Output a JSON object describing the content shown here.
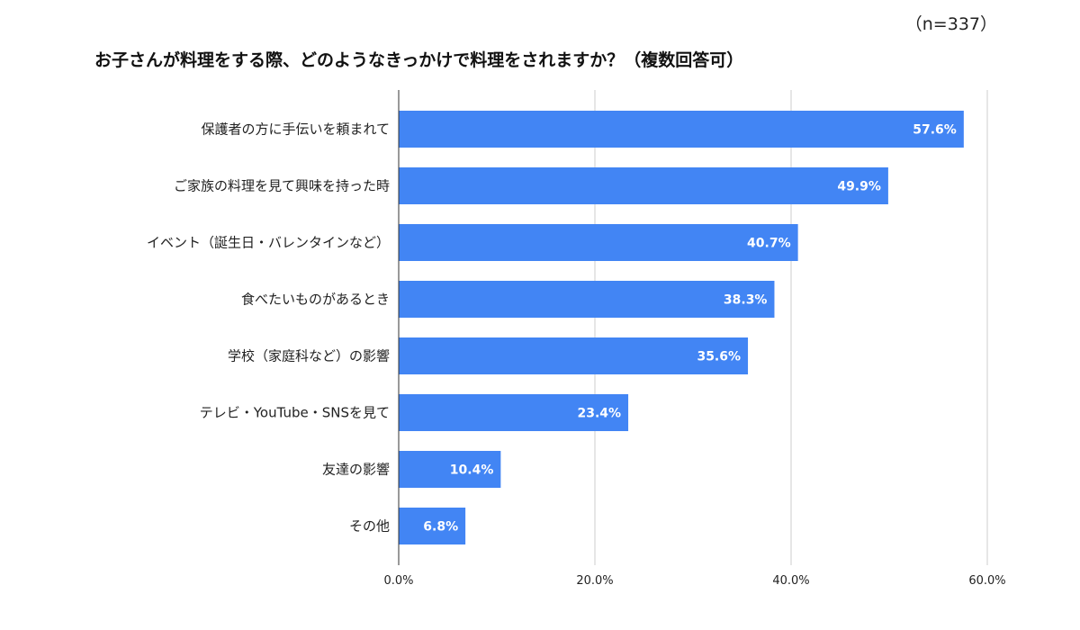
{
  "chart_data": {
    "type": "bar",
    "orientation": "horizontal",
    "title": "お子さんが料理をする際、どのようなきっかけで料理をされますか？（複数回答可）",
    "sample_size": "（n=337）",
    "categories": [
      "保護者の方に手伝いを頼まれて",
      "ご家族の料理を見て興味を持った時",
      "イベント（誕生日・バレンタインなど）",
      "食べたいものがあるとき",
      "学校（家庭科など）の影響",
      "テレビ・YouTube・SNSを見て",
      "友達の影響",
      "その他"
    ],
    "values": [
      57.6,
      49.9,
      40.7,
      38.3,
      35.6,
      23.4,
      10.4,
      6.8
    ],
    "value_labels": [
      "57.6%",
      "49.9%",
      "40.7%",
      "38.3%",
      "35.6%",
      "23.4%",
      "10.4%",
      "6.8%"
    ],
    "xlim": [
      0,
      60
    ],
    "x_ticks": [
      0,
      20,
      40,
      60
    ],
    "x_tick_labels": [
      "0.0%",
      "20.0%",
      "40.0%",
      "60.0%"
    ],
    "grid": true,
    "bar_color": "#4285f4",
    "grid_color": "#cccccc",
    "axis_color": "#333333"
  }
}
